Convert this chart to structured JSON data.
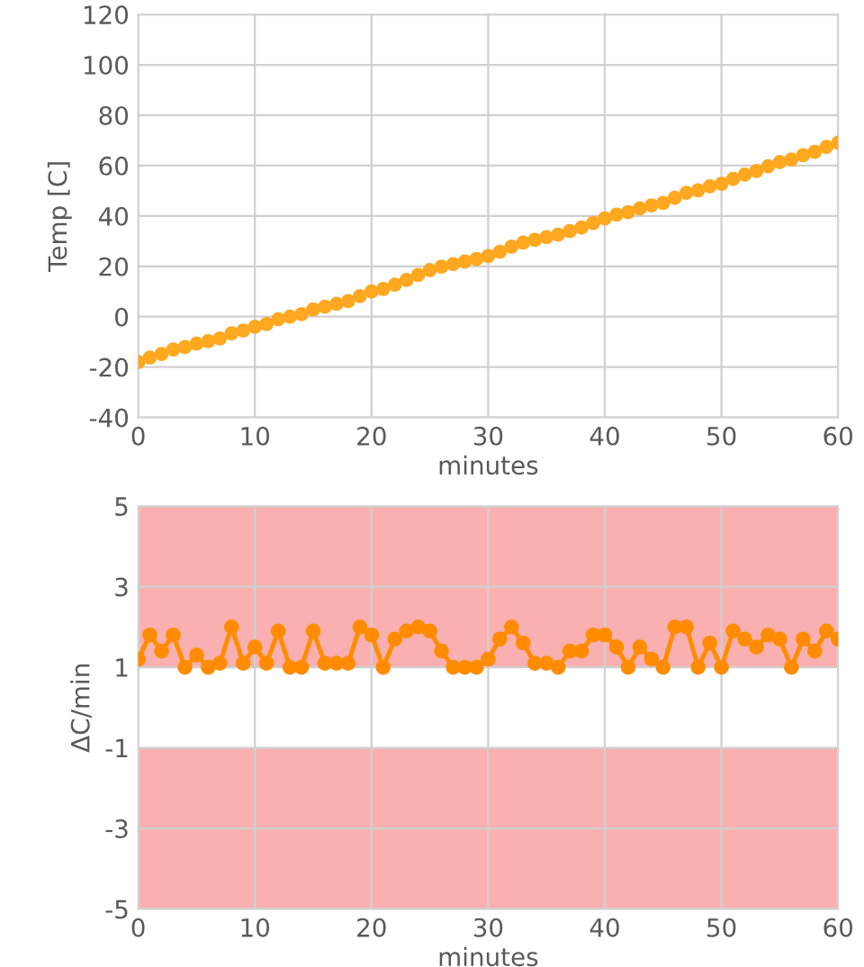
{
  "chart_data": [
    {
      "type": "scatter",
      "xlabel": "minutes",
      "ylabel": "Temp [C]",
      "xlim": [
        0,
        60
      ],
      "ylim": [
        -40,
        120
      ],
      "xticks": [
        0,
        10,
        20,
        30,
        40,
        50,
        60
      ],
      "yticks": [
        -40,
        -20,
        0,
        20,
        40,
        60,
        80,
        100,
        120
      ],
      "grid": true,
      "marker": "circle",
      "x": [
        0,
        1,
        2,
        3,
        4,
        5,
        6,
        7,
        8,
        9,
        10,
        11,
        12,
        13,
        14,
        15,
        16,
        17,
        18,
        19,
        20,
        21,
        22,
        23,
        24,
        25,
        26,
        27,
        28,
        29,
        30,
        31,
        32,
        33,
        34,
        35,
        36,
        37,
        38,
        39,
        40,
        41,
        42,
        43,
        44,
        45,
        46,
        47,
        48,
        49,
        50,
        51,
        52,
        53,
        54,
        55,
        56,
        57,
        58,
        59,
        60
      ],
      "series": [
        {
          "color": "#ffa820",
          "values": [
            -18.0,
            -16.2,
            -14.8,
            -13.0,
            -12.0,
            -10.7,
            -9.7,
            -8.6,
            -6.6,
            -5.5,
            -4.0,
            -2.9,
            -1.0,
            0.0,
            1.0,
            2.9,
            4.0,
            5.1,
            6.2,
            8.2,
            10.0,
            11.0,
            12.7,
            14.6,
            16.6,
            18.5,
            19.9,
            20.9,
            21.9,
            22.9,
            24.1,
            25.8,
            27.8,
            29.4,
            30.5,
            31.6,
            32.6,
            34.0,
            35.4,
            37.2,
            39.0,
            40.5,
            41.5,
            43.0,
            44.2,
            45.2,
            47.2,
            49.2,
            50.2,
            51.8,
            52.8,
            54.7,
            56.4,
            57.9,
            59.7,
            61.4,
            62.4,
            64.1,
            65.5,
            67.4,
            69.1
          ]
        }
      ]
    },
    {
      "type": "line",
      "xlabel": "minutes",
      "ylabel": "ΔC/min",
      "xlim": [
        0,
        60
      ],
      "ylim": [
        -5,
        5
      ],
      "xticks": [
        0,
        10,
        20,
        30,
        40,
        50,
        60
      ],
      "yticks": [
        -5,
        -3,
        -1,
        1,
        3,
        5
      ],
      "grid": true,
      "marker": "circle",
      "line_style": "solid",
      "x": [
        0,
        1,
        2,
        3,
        4,
        5,
        6,
        7,
        8,
        9,
        10,
        11,
        12,
        13,
        14,
        15,
        16,
        17,
        18,
        19,
        20,
        21,
        22,
        23,
        24,
        25,
        26,
        27,
        28,
        29,
        30,
        31,
        32,
        33,
        34,
        35,
        36,
        37,
        38,
        39,
        40,
        41,
        42,
        43,
        44,
        45,
        46,
        47,
        48,
        49,
        50,
        51,
        52,
        53,
        54,
        55,
        56,
        57,
        58,
        59,
        60
      ],
      "series": [
        {
          "color": "#ff8c00",
          "values": [
            1.2,
            1.8,
            1.4,
            1.8,
            1.0,
            1.3,
            1.0,
            1.1,
            2.0,
            1.1,
            1.5,
            1.1,
            1.9,
            1.0,
            1.0,
            1.9,
            1.1,
            1.1,
            1.1,
            2.0,
            1.8,
            1.0,
            1.7,
            1.9,
            2.0,
            1.9,
            1.4,
            1.0,
            1.0,
            1.0,
            1.2,
            1.7,
            2.0,
            1.6,
            1.1,
            1.1,
            1.0,
            1.4,
            1.4,
            1.8,
            1.8,
            1.5,
            1.0,
            1.5,
            1.2,
            1.0,
            2.0,
            2.0,
            1.0,
            1.6,
            1.0,
            1.9,
            1.7,
            1.5,
            1.8,
            1.7,
            1.0,
            1.7,
            1.4,
            1.9,
            1.7
          ]
        }
      ],
      "bands": [
        {
          "axis": "y",
          "from": 1,
          "to": 5,
          "color": "#fab0b0"
        },
        {
          "axis": "y",
          "from": -5,
          "to": -1,
          "color": "#fab0b0"
        }
      ]
    }
  ]
}
